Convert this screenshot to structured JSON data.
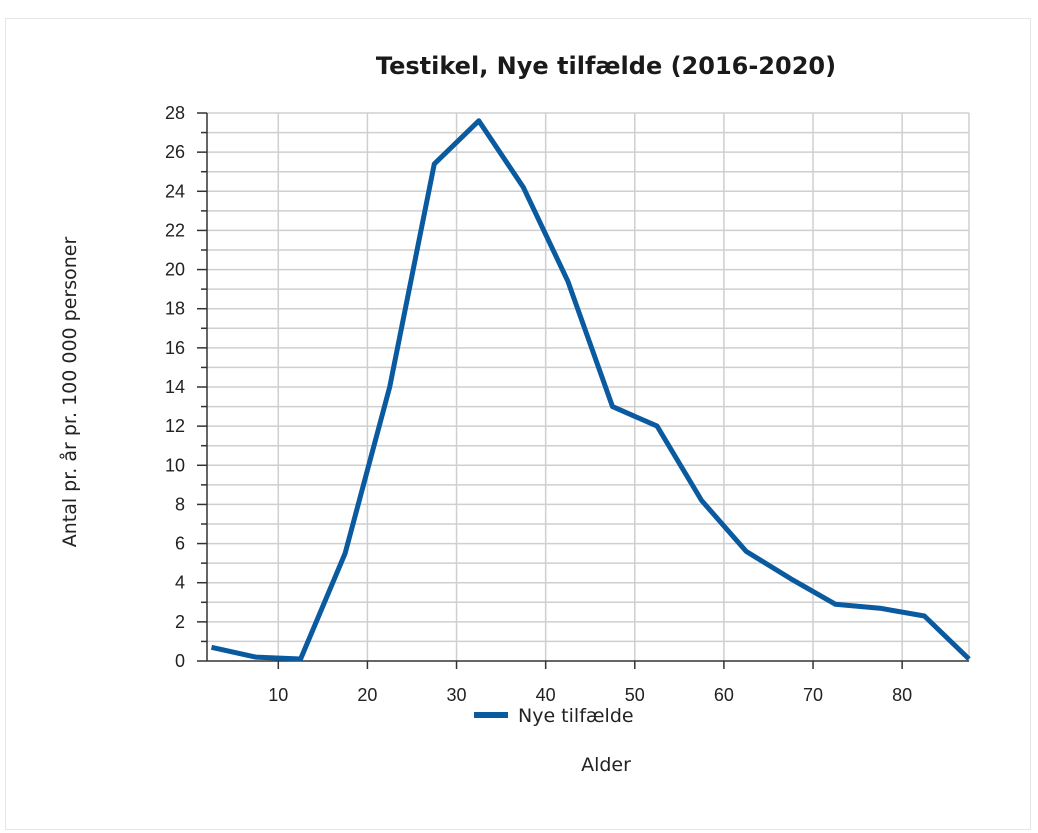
{
  "chart_data": {
    "type": "line",
    "title": "Testikel, Nye tilfælde (2016-2020)",
    "xlabel": "Alder",
    "ylabel": "Antal pr. år pr. 100 000 personer",
    "xlim": [
      2,
      87.5
    ],
    "ylim": [
      0,
      28
    ],
    "x_ticks": [
      10,
      20,
      30,
      40,
      50,
      60,
      70,
      80
    ],
    "y_ticks": [
      0,
      2,
      4,
      6,
      8,
      10,
      12,
      14,
      16,
      18,
      20,
      22,
      24,
      26,
      28
    ],
    "grid": true,
    "legend_position": "bottom",
    "x": [
      2.5,
      7.5,
      12.5,
      17.5,
      22.5,
      27.5,
      32.5,
      37.5,
      42.5,
      47.5,
      52.5,
      57.5,
      62.5,
      67.5,
      72.5,
      77.5,
      82.5,
      87.5
    ],
    "series": [
      {
        "name": "Nye tilfælde",
        "color": "#0a5aa0",
        "values": [
          0.7,
          0.2,
          0.1,
          5.5,
          14.0,
          25.4,
          27.6,
          24.2,
          19.4,
          13.0,
          12.0,
          8.2,
          5.6,
          4.2,
          2.9,
          2.7,
          2.3,
          0.1
        ]
      }
    ]
  }
}
